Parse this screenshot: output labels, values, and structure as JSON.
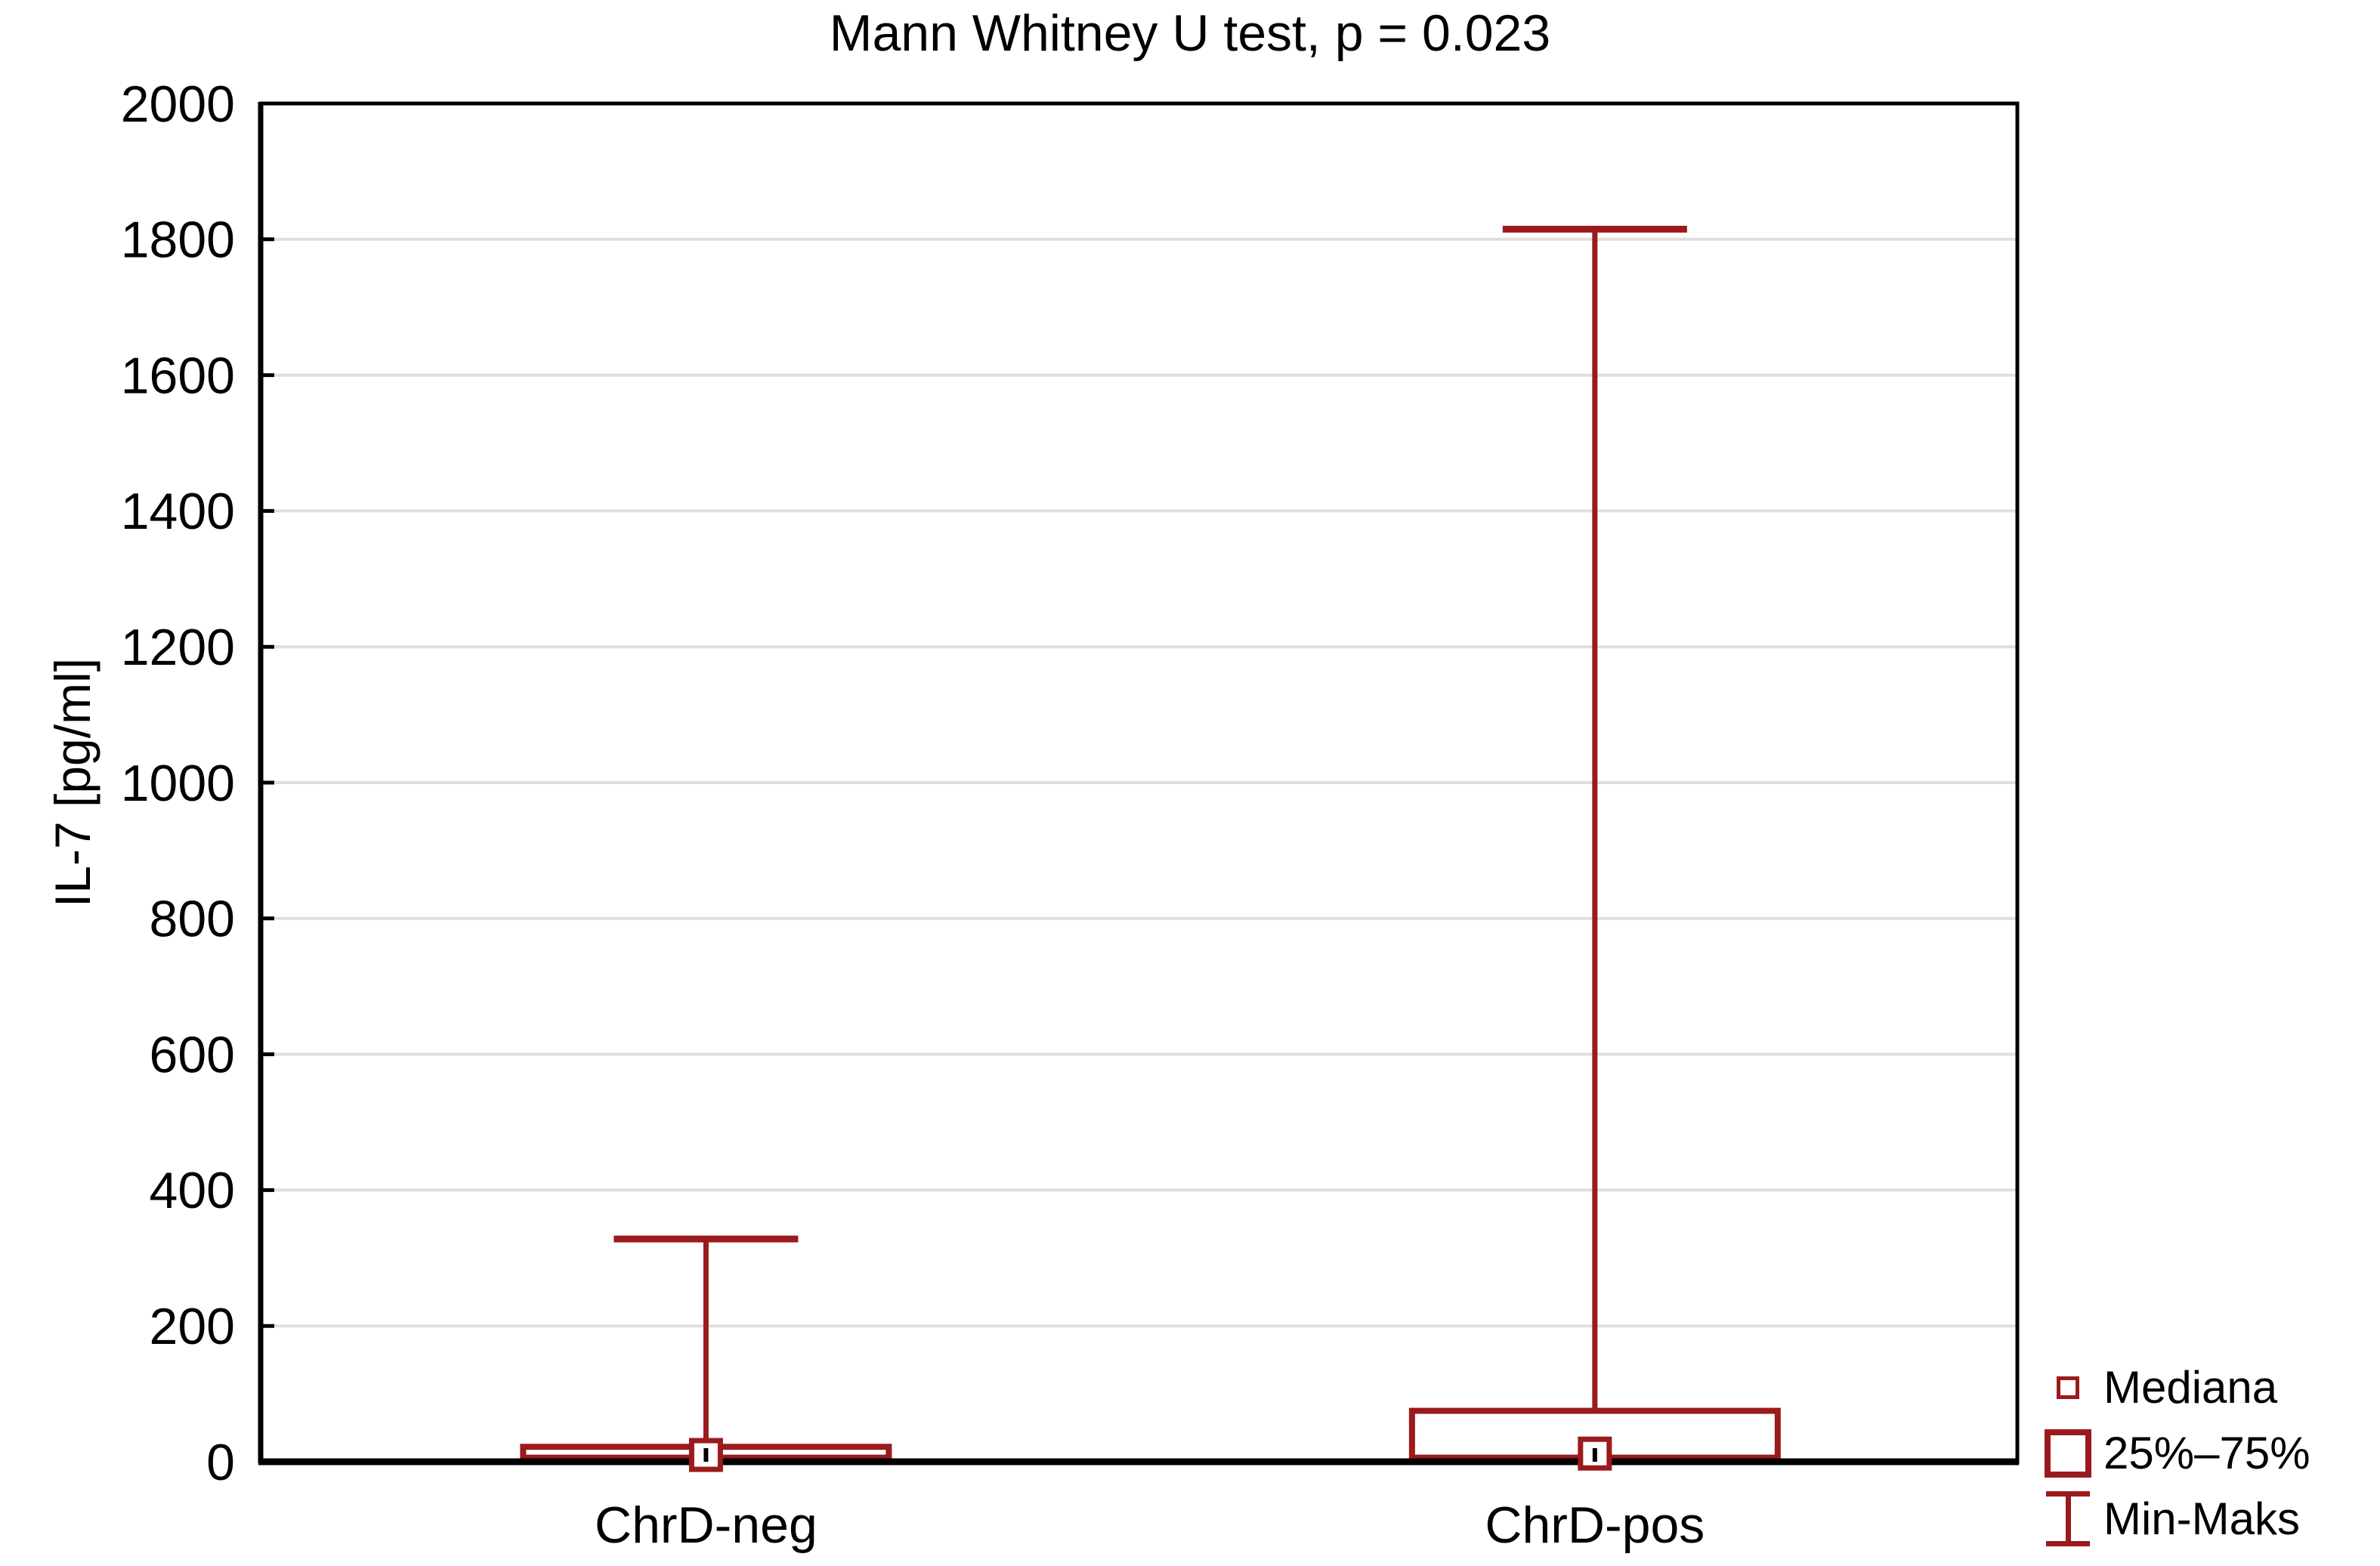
{
  "chart_data": {
    "type": "box",
    "title": "Mann Whitney U test, p = 0.023",
    "ylabel": "IL-7 [pg/ml]",
    "xlabel": "",
    "ylim": [
      0,
      2000
    ],
    "ytick_step": 200,
    "yticks": [
      0,
      200,
      400,
      600,
      800,
      1000,
      1200,
      1400,
      1600,
      1800,
      2000
    ],
    "categories": [
      "ChrD-neg",
      "ChrD-pos"
    ],
    "series": [
      {
        "name": "ChrD-neg",
        "min": 2,
        "q1": 6,
        "median": 10,
        "q3": 22,
        "max": 328
      },
      {
        "name": "ChrD-pos",
        "min": 2,
        "q1": 6,
        "median": 12,
        "q3": 75,
        "max": 1815
      }
    ],
    "grid": true,
    "legend_position": "bottom-right",
    "legend": [
      {
        "marker": "median-square",
        "label": "Mediana"
      },
      {
        "marker": "iqr-box",
        "label": "25%–75%"
      },
      {
        "marker": "min-max-whisker",
        "label": "Min-Maks"
      }
    ],
    "colors": {
      "box": "#9B1A1C",
      "axis": "#000000",
      "grid": "#DFDFDF",
      "text": "#000000",
      "background": "#FFFFFF"
    }
  }
}
